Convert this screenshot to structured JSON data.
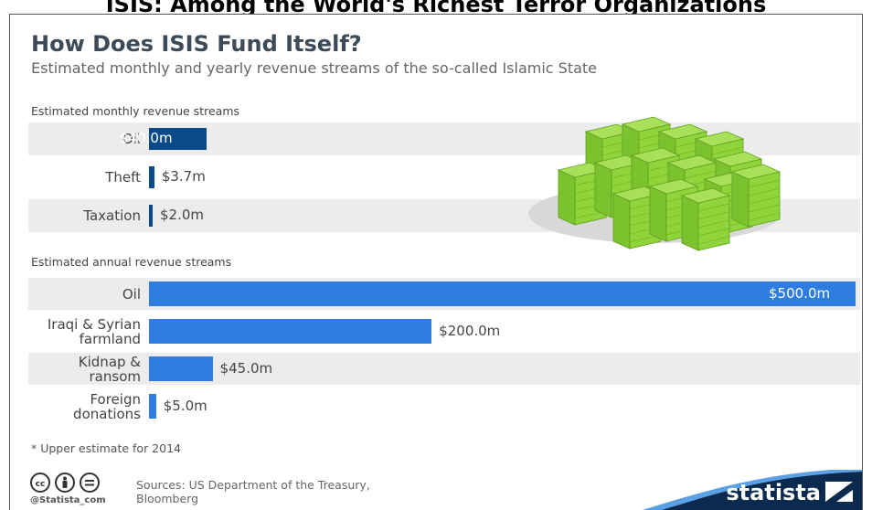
{
  "banner_text": "ISIS: Among the World's Richest Terror Organizations",
  "title": "How Does ISIS Fund Itself?",
  "subtitle": "Estimated monthly and yearly revenue streams of the so-called Islamic State",
  "chart_data": [
    {
      "type": "bar",
      "orientation": "horizontal",
      "section_label": "Estimated monthly revenue streams",
      "categories": [
        "Oil",
        "Theft",
        "Taxation"
      ],
      "values": [
        40.0,
        3.7,
        2.0
      ],
      "value_labels": [
        "$40.0m",
        "$3.7m",
        "$2.0m"
      ],
      "unit": "$m",
      "bar_color": "#0a4a8a"
    },
    {
      "type": "bar",
      "orientation": "horizontal",
      "section_label": "Estimated annual revenue streams",
      "categories": [
        "Oil",
        "Iraqi & Syrian farmland",
        "Kidnap & ransom",
        "Foreign donations"
      ],
      "category_lines": [
        [
          "Oil"
        ],
        [
          "Iraqi & Syrian",
          "farmland"
        ],
        [
          "Kidnap &",
          "ransom"
        ],
        [
          "Foreign",
          "donations"
        ]
      ],
      "values": [
        500.0,
        200.0,
        45.0,
        5.0
      ],
      "value_labels": [
        "$500.0m",
        "$200.0m",
        "$45.0m",
        "$5.0m"
      ],
      "unit": "$m",
      "bar_color": "#2f7de1"
    }
  ],
  "footnote": "* Upper estimate for 2014",
  "license_icons": [
    "cc-icon",
    "person-icon",
    "equals-icon"
  ],
  "handle": "@Statista_com",
  "sources": "Sources: US Department of the Treasury, Bloomberg",
  "brand": "statista",
  "colors": {
    "title": "#3d4a57",
    "band": "#ececec",
    "brand": "#0a2a4f",
    "money": "#8fd43a"
  }
}
